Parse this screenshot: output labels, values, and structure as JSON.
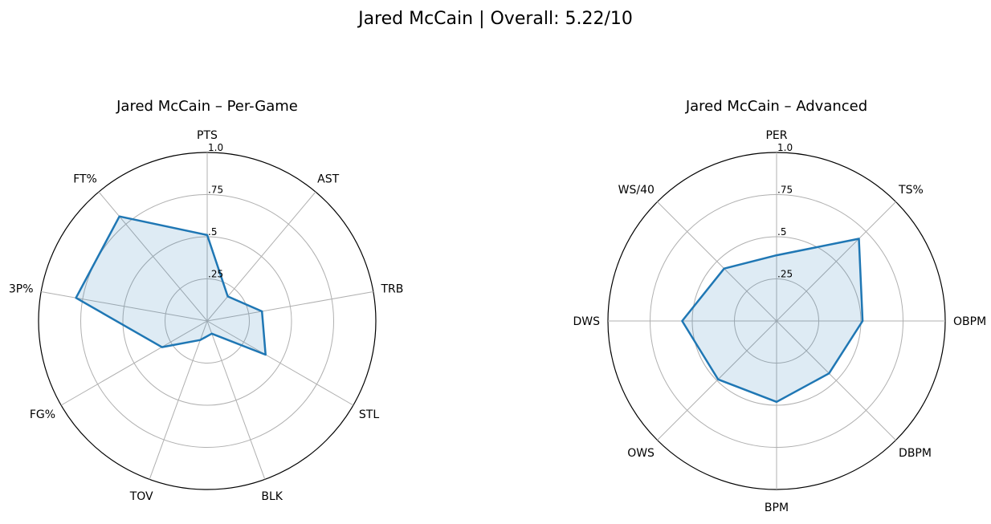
{
  "figure": {
    "title": "Jared McCain | Overall: 5.22/10"
  },
  "chart_data": [
    {
      "type": "radar",
      "title": "Jared McCain – Per-Game",
      "axes": [
        "PTS",
        "AST",
        "TRB",
        "STL",
        "BLK",
        "TOV",
        "FG%",
        "3P%",
        "FT%"
      ],
      "values": [
        0.51,
        0.19,
        0.33,
        0.4,
        0.08,
        0.12,
        0.31,
        0.79,
        0.81
      ],
      "rlim": [
        0,
        1.0
      ],
      "rticks": [
        0.25,
        0.5,
        0.75,
        1.0
      ],
      "rtick_labels": [
        ".25",
        ".5",
        ".75",
        "1.0"
      ],
      "grid": true,
      "line_color": "#1f77b4",
      "fill_color": "#1f77b4"
    },
    {
      "type": "radar",
      "title": "Jared McCain – Advanced",
      "axes": [
        "PER",
        "TS%",
        "OBPM",
        "DBPM",
        "BPM",
        "OWS",
        "DWS",
        "WS/40"
      ],
      "values": [
        0.39,
        0.69,
        0.51,
        0.44,
        0.48,
        0.49,
        0.56,
        0.44
      ],
      "rlim": [
        0,
        1.0
      ],
      "rticks": [
        0.25,
        0.5,
        0.75,
        1.0
      ],
      "rtick_labels": [
        ".25",
        ".5",
        ".75",
        "1.0"
      ],
      "grid": true,
      "line_color": "#1f77b4",
      "fill_color": "#1f77b4"
    }
  ]
}
